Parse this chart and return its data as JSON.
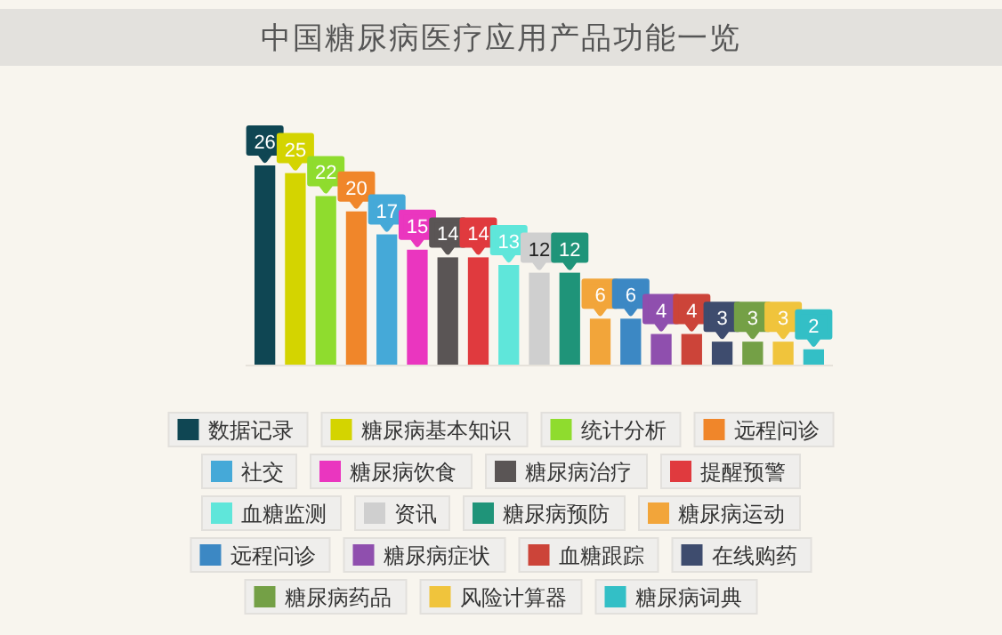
{
  "chart_data": {
    "type": "bar",
    "title": "中国糖尿病医疗应用产品功能一览",
    "categories": [
      null,
      null,
      null,
      null,
      null,
      null,
      null,
      null,
      null,
      null,
      null,
      null,
      null,
      null,
      null,
      null,
      null,
      null,
      null
    ],
    "series": [
      {
        "name": "数据记录",
        "color": "#0f4653",
        "values": [
          26,
          null,
          null,
          null,
          null,
          null,
          null,
          null,
          null,
          null,
          null,
          null,
          null,
          null,
          null,
          null,
          null,
          null,
          null
        ]
      },
      {
        "name": "糖尿病基本知识",
        "color": "#d4d400",
        "values": [
          null,
          25,
          null,
          null,
          null,
          null,
          null,
          null,
          null,
          null,
          null,
          null,
          null,
          null,
          null,
          null,
          null,
          null,
          null
        ]
      },
      {
        "name": "统计分析",
        "color": "#8fdc2e",
        "values": [
          null,
          null,
          22,
          null,
          null,
          null,
          null,
          null,
          null,
          null,
          null,
          null,
          null,
          null,
          null,
          null,
          null,
          null,
          null
        ]
      },
      {
        "name": "远程问诊",
        "color": "#f0862a",
        "values": [
          null,
          null,
          null,
          20,
          null,
          null,
          null,
          null,
          null,
          null,
          null,
          null,
          null,
          null,
          null,
          null,
          null,
          null,
          null
        ]
      },
      {
        "name": "社交",
        "color": "#45a9d8",
        "values": [
          null,
          null,
          null,
          null,
          17,
          null,
          null,
          null,
          null,
          null,
          null,
          null,
          null,
          null,
          null,
          null,
          null,
          null,
          null
        ]
      },
      {
        "name": "糖尿病饮食",
        "color": "#ea36bf",
        "values": [
          null,
          null,
          null,
          null,
          null,
          15,
          null,
          null,
          null,
          null,
          null,
          null,
          null,
          null,
          null,
          null,
          null,
          null,
          null
        ]
      },
      {
        "name": "糖尿病治疗",
        "color": "#5a5555",
        "values": [
          null,
          null,
          null,
          null,
          null,
          null,
          14,
          null,
          null,
          null,
          null,
          null,
          null,
          null,
          null,
          null,
          null,
          null,
          null
        ]
      },
      {
        "name": "提醒预警",
        "color": "#e03a3e",
        "values": [
          null,
          null,
          null,
          null,
          null,
          null,
          null,
          14,
          null,
          null,
          null,
          null,
          null,
          null,
          null,
          null,
          null,
          null,
          null
        ]
      },
      {
        "name": "血糖监测",
        "color": "#5fe6da",
        "values": [
          null,
          null,
          null,
          null,
          null,
          null,
          null,
          null,
          13,
          null,
          null,
          null,
          null,
          null,
          null,
          null,
          null,
          null,
          null
        ]
      },
      {
        "name": "资讯",
        "color": "#cfcfcf",
        "values": [
          null,
          null,
          null,
          null,
          null,
          null,
          null,
          null,
          null,
          12,
          null,
          null,
          null,
          null,
          null,
          null,
          null,
          null,
          null
        ]
      },
      {
        "name": "糖尿病预防",
        "color": "#1f9479",
        "values": [
          null,
          null,
          null,
          null,
          null,
          null,
          null,
          null,
          null,
          null,
          12,
          null,
          null,
          null,
          null,
          null,
          null,
          null,
          null
        ]
      },
      {
        "name": "糖尿病运动",
        "color": "#f2a53a",
        "values": [
          null,
          null,
          null,
          null,
          null,
          null,
          null,
          null,
          null,
          null,
          null,
          6,
          null,
          null,
          null,
          null,
          null,
          null,
          null
        ]
      },
      {
        "name": "远程问诊",
        "color": "#3c88c4",
        "values": [
          null,
          null,
          null,
          null,
          null,
          null,
          null,
          null,
          null,
          null,
          null,
          null,
          6,
          null,
          null,
          null,
          null,
          null,
          null
        ]
      },
      {
        "name": "糖尿病症状",
        "color": "#8f4fae",
        "values": [
          null,
          null,
          null,
          null,
          null,
          null,
          null,
          null,
          null,
          null,
          null,
          null,
          null,
          4,
          null,
          null,
          null,
          null,
          null
        ]
      },
      {
        "name": "血糖跟踪",
        "color": "#cc4439",
        "values": [
          null,
          null,
          null,
          null,
          null,
          null,
          null,
          null,
          null,
          null,
          null,
          null,
          null,
          null,
          4,
          null,
          null,
          null,
          null
        ]
      },
      {
        "name": "在线购药",
        "color": "#3e4c6e",
        "values": [
          null,
          null,
          null,
          null,
          null,
          null,
          null,
          null,
          null,
          null,
          null,
          null,
          null,
          null,
          null,
          3,
          null,
          null,
          null
        ]
      },
      {
        "name": "糖尿病药品",
        "color": "#74a046",
        "values": [
          null,
          null,
          null,
          null,
          null,
          null,
          null,
          null,
          null,
          null,
          null,
          null,
          null,
          null,
          null,
          null,
          3,
          null,
          null
        ]
      },
      {
        "name": "风险计算器",
        "color": "#f0c43c",
        "values": [
          null,
          null,
          null,
          null,
          null,
          null,
          null,
          null,
          null,
          null,
          null,
          null,
          null,
          null,
          null,
          null,
          null,
          3,
          null
        ]
      },
      {
        "name": "糖尿病词典",
        "color": "#33bfc6",
        "values": [
          null,
          null,
          null,
          null,
          null,
          null,
          null,
          null,
          null,
          null,
          null,
          null,
          null,
          null,
          null,
          null,
          null,
          null,
          2
        ]
      }
    ],
    "stacked": true,
    "data_labels": true,
    "legend": "bottom"
  }
}
